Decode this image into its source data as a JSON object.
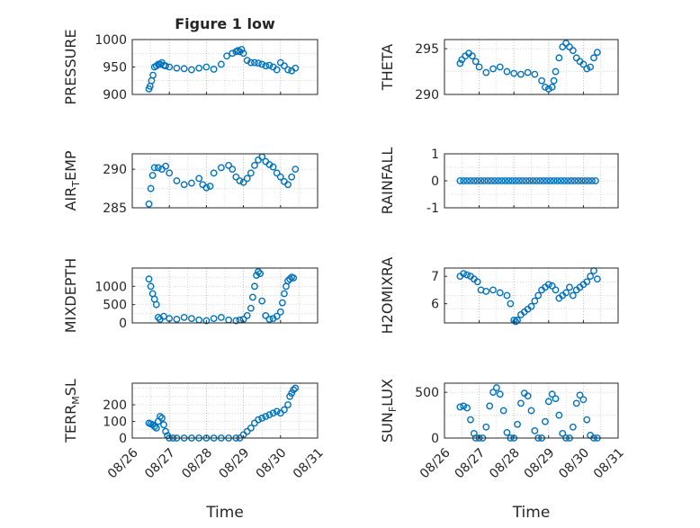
{
  "chart_data": [
    {
      "type": "scatter",
      "title": "Figure 1 low",
      "ylabel": "PRESSURE",
      "xlabel": "",
      "ylim": [
        900,
        1000
      ],
      "yticks": [
        "900",
        "950",
        "1000"
      ],
      "xticks": [],
      "grid": true,
      "color": "#0072BD",
      "series": [
        {
          "x": [
            0.45,
            0.48,
            0.52,
            0.56,
            0.6,
            0.65,
            0.7,
            0.75,
            0.8,
            0.85,
            0.9,
            1.0,
            1.2,
            1.4,
            1.6,
            1.8,
            2.0,
            2.2,
            2.4,
            2.55,
            2.7,
            2.8,
            2.85,
            2.9,
            2.95,
            3.0,
            3.1,
            3.2,
            3.3,
            3.4,
            3.5,
            3.6,
            3.7,
            3.8,
            3.9,
            4.0,
            4.1,
            4.2,
            4.3,
            4.4
          ],
          "y": [
            910,
            915,
            925,
            935,
            950,
            952,
            955,
            955,
            958,
            953,
            952,
            950,
            948,
            947,
            945,
            948,
            950,
            946,
            955,
            970,
            975,
            978,
            980,
            978,
            982,
            975,
            962,
            958,
            958,
            957,
            955,
            952,
            953,
            950,
            945,
            958,
            952,
            945,
            943,
            948
          ]
        }
      ]
    },
    {
      "type": "scatter",
      "title": "",
      "ylabel": "THETA",
      "xlabel": "",
      "ylim": [
        290,
        296
      ],
      "yticks": [
        "290",
        "295"
      ],
      "xticks": [],
      "grid": true,
      "color": "#0072BD",
      "series": [
        {
          "x": [
            0.45,
            0.5,
            0.6,
            0.7,
            0.8,
            0.9,
            1.0,
            1.2,
            1.4,
            1.6,
            1.8,
            2.0,
            2.2,
            2.4,
            2.6,
            2.8,
            2.9,
            3.0,
            3.1,
            3.15,
            3.2,
            3.3,
            3.4,
            3.5,
            3.6,
            3.7,
            3.8,
            3.9,
            4.0,
            4.1,
            4.2,
            4.3,
            4.4
          ],
          "y": [
            293.4,
            293.8,
            294.2,
            294.5,
            294.2,
            293.6,
            293.0,
            292.4,
            292.8,
            293.0,
            292.5,
            292.3,
            292.2,
            292.4,
            292.2,
            291.5,
            290.8,
            290.6,
            290.8,
            291.5,
            292.5,
            294.0,
            295.2,
            295.6,
            295.2,
            294.8,
            294.0,
            293.6,
            293.3,
            292.8,
            293.0,
            294.0,
            294.6
          ]
        }
      ]
    },
    {
      "type": "scatter",
      "title": "",
      "ylabel": "AIR_TEMP",
      "xlabel": "",
      "ylim": [
        285,
        292
      ],
      "yticks": [
        "285",
        "290"
      ],
      "xticks": [],
      "grid": true,
      "color": "#0072BD",
      "series": [
        {
          "x": [
            0.45,
            0.5,
            0.55,
            0.6,
            0.7,
            0.8,
            0.9,
            1.0,
            1.2,
            1.4,
            1.6,
            1.8,
            1.9,
            2.0,
            2.1,
            2.2,
            2.4,
            2.6,
            2.7,
            2.8,
            2.9,
            3.0,
            3.1,
            3.2,
            3.3,
            3.4,
            3.5,
            3.6,
            3.7,
            3.8,
            3.9,
            4.0,
            4.1,
            4.2,
            4.3,
            4.4
          ],
          "y": [
            285.5,
            287.5,
            289.2,
            290.2,
            290.2,
            290.0,
            290.4,
            289.5,
            288.5,
            288.0,
            288.2,
            288.8,
            288.0,
            287.6,
            287.8,
            289.5,
            290.2,
            290.5,
            290.0,
            289.0,
            288.5,
            288.3,
            288.8,
            289.5,
            290.5,
            291.2,
            291.6,
            291.0,
            290.6,
            290.3,
            289.5,
            289.0,
            288.4,
            288.0,
            289.0,
            290.0
          ]
        }
      ]
    },
    {
      "type": "scatter",
      "title": "",
      "ylabel": "RAINFALL",
      "xlabel": "",
      "ylim": [
        -1,
        1
      ],
      "yticks": [
        "-1",
        "0",
        "1"
      ],
      "xticks": [],
      "grid": true,
      "color": "#0072BD",
      "series": [
        {
          "x": [
            0.45,
            0.55,
            0.65,
            0.75,
            0.85,
            0.95,
            1.05,
            1.15,
            1.25,
            1.35,
            1.45,
            1.55,
            1.65,
            1.75,
            1.85,
            1.95,
            2.05,
            2.15,
            2.25,
            2.35,
            2.45,
            2.55,
            2.65,
            2.75,
            2.85,
            2.95,
            3.05,
            3.15,
            3.25,
            3.35,
            3.45,
            3.55,
            3.65,
            3.75,
            3.85,
            3.95,
            4.05,
            4.15,
            4.25,
            4.35
          ],
          "y": [
            0,
            0,
            0,
            0,
            0,
            0,
            0,
            0,
            0,
            0,
            0,
            0,
            0,
            0,
            0,
            0,
            0,
            0,
            0,
            0,
            0,
            0,
            0,
            0,
            0,
            0,
            0,
            0,
            0,
            0,
            0,
            0,
            0,
            0,
            0,
            0,
            0,
            0,
            0,
            0
          ]
        }
      ]
    },
    {
      "type": "scatter",
      "title": "",
      "ylabel": "MIXDEPTH",
      "xlabel": "",
      "ylim": [
        0,
        1500
      ],
      "yticks": [
        "0",
        "500",
        "1000"
      ],
      "xticks": [],
      "grid": true,
      "color": "#0072BD",
      "series": [
        {
          "x": [
            0.45,
            0.5,
            0.55,
            0.6,
            0.65,
            0.7,
            0.75,
            0.85,
            1.0,
            1.2,
            1.4,
            1.6,
            1.8,
            2.0,
            2.2,
            2.4,
            2.6,
            2.8,
            2.9,
            3.0,
            3.1,
            3.2,
            3.25,
            3.3,
            3.35,
            3.4,
            3.45,
            3.5,
            3.6,
            3.7,
            3.8,
            3.9,
            4.0,
            4.05,
            4.1,
            4.15,
            4.2,
            4.25,
            4.3,
            4.35
          ],
          "y": [
            1200,
            1000,
            800,
            650,
            500,
            150,
            100,
            180,
            120,
            100,
            150,
            120,
            80,
            60,
            120,
            150,
            80,
            60,
            80,
            100,
            200,
            400,
            700,
            1000,
            1300,
            1400,
            1350,
            600,
            200,
            100,
            120,
            180,
            300,
            550,
            800,
            1000,
            1150,
            1200,
            1250,
            1230
          ]
        }
      ]
    },
    {
      "type": "scatter",
      "title": "",
      "ylabel": "H2OMIXRA",
      "xlabel": "",
      "ylim": [
        5.3,
        7.3
      ],
      "yticks": [
        "6",
        "7"
      ],
      "xticks": [],
      "grid": true,
      "color": "#0072BD",
      "series": [
        {
          "x": [
            0.45,
            0.55,
            0.65,
            0.75,
            0.85,
            0.95,
            1.05,
            1.2,
            1.4,
            1.6,
            1.8,
            1.9,
            2.0,
            2.05,
            2.1,
            2.2,
            2.3,
            2.4,
            2.5,
            2.6,
            2.7,
            2.8,
            2.9,
            3.0,
            3.1,
            3.2,
            3.3,
            3.4,
            3.5,
            3.6,
            3.7,
            3.8,
            3.9,
            4.0,
            4.1,
            4.2,
            4.3,
            4.4
          ],
          "y": [
            7.0,
            7.1,
            7.05,
            7.0,
            6.9,
            6.8,
            6.5,
            6.45,
            6.5,
            6.4,
            6.3,
            6.0,
            5.4,
            5.35,
            5.4,
            5.6,
            5.7,
            5.8,
            5.9,
            6.1,
            6.3,
            6.5,
            6.6,
            6.7,
            6.65,
            6.5,
            6.2,
            6.3,
            6.4,
            6.6,
            6.3,
            6.5,
            6.6,
            6.7,
            6.8,
            7.0,
            7.2,
            6.9
          ]
        }
      ]
    },
    {
      "type": "scatter",
      "title": "",
      "ylabel": "TERR_MSL",
      "xlabel": "Time",
      "ylim": [
        0,
        330
      ],
      "yticks": [
        "0",
        "100",
        "200"
      ],
      "xticks": [
        "08/26",
        "08/27",
        "08/28",
        "08/29",
        "08/30",
        "08/31"
      ],
      "grid": true,
      "color": "#0072BD",
      "series": [
        {
          "x": [
            0.45,
            0.5,
            0.55,
            0.6,
            0.65,
            0.7,
            0.75,
            0.8,
            0.85,
            0.9,
            0.95,
            1.0,
            1.1,
            1.2,
            1.4,
            1.6,
            1.8,
            2.0,
            2.2,
            2.4,
            2.6,
            2.8,
            2.9,
            3.0,
            3.1,
            3.2,
            3.3,
            3.4,
            3.5,
            3.6,
            3.7,
            3.8,
            3.9,
            4.0,
            4.1,
            4.2,
            4.25,
            4.3,
            4.35,
            4.4
          ],
          "y": [
            90,
            85,
            80,
            70,
            60,
            100,
            130,
            120,
            80,
            40,
            15,
            0,
            0,
            0,
            0,
            0,
            0,
            0,
            0,
            0,
            0,
            0,
            0,
            20,
            40,
            60,
            90,
            110,
            120,
            130,
            140,
            150,
            160,
            150,
            170,
            200,
            250,
            270,
            290,
            300
          ]
        }
      ]
    },
    {
      "type": "scatter",
      "title": "",
      "ylabel": "SUN_FLUX",
      "xlabel": "Time",
      "ylim": [
        0,
        600
      ],
      "yticks": [
        "0",
        "500"
      ],
      "xticks": [
        "08/26",
        "08/27",
        "08/28",
        "08/29",
        "08/30",
        "08/31"
      ],
      "grid": true,
      "color": "#0072BD",
      "series": [
        {
          "x": [
            0.45,
            0.55,
            0.65,
            0.75,
            0.85,
            0.9,
            1.0,
            1.1,
            1.2,
            1.3,
            1.4,
            1.5,
            1.6,
            1.7,
            1.8,
            1.9,
            2.0,
            2.1,
            2.2,
            2.3,
            2.4,
            2.5,
            2.6,
            2.7,
            2.8,
            2.9,
            3.0,
            3.1,
            3.2,
            3.3,
            3.4,
            3.5,
            3.6,
            3.7,
            3.8,
            3.9,
            4.0,
            4.1,
            4.2,
            4.3,
            4.4
          ],
          "y": [
            340,
            350,
            330,
            200,
            50,
            0,
            0,
            0,
            120,
            350,
            500,
            550,
            480,
            300,
            60,
            0,
            0,
            150,
            380,
            490,
            460,
            300,
            80,
            0,
            0,
            180,
            400,
            480,
            430,
            250,
            50,
            0,
            0,
            120,
            380,
            470,
            420,
            200,
            30,
            0,
            0
          ]
        }
      ]
    }
  ]
}
